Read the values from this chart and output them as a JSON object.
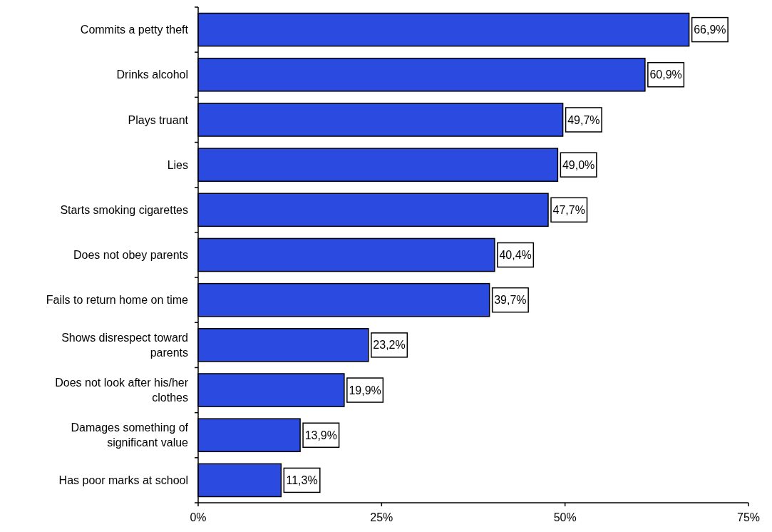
{
  "chart_data": {
    "type": "bar",
    "orientation": "horizontal",
    "categories": [
      "Commits a petty theft",
      "Drinks alcohol",
      "Plays truant",
      "Lies",
      "Starts smoking cigarettes",
      "Does not obey parents",
      "Fails to return home on time",
      "Shows disrespect toward parents",
      "Does not look after his/her clothes",
      "Damages something of significant value",
      "Has poor marks at school"
    ],
    "values": [
      66.9,
      60.9,
      49.7,
      49.0,
      47.7,
      40.4,
      39.7,
      23.2,
      19.9,
      13.9,
      11.3
    ],
    "value_labels": [
      "66,9%",
      "60,9%",
      "49,7%",
      "49,0%",
      "47,7%",
      "40,4%",
      "39,7%",
      "23,2%",
      "19,9%",
      "13,9%",
      "11,3%"
    ],
    "color": "#2b4be0",
    "xlim": [
      0,
      75
    ],
    "xticks": [
      {
        "value": 0,
        "label": "0%"
      },
      {
        "value": 25,
        "label": "25%"
      },
      {
        "value": 50,
        "label": "50%"
      },
      {
        "value": 75,
        "label": "75%"
      }
    ],
    "grid": false
  }
}
